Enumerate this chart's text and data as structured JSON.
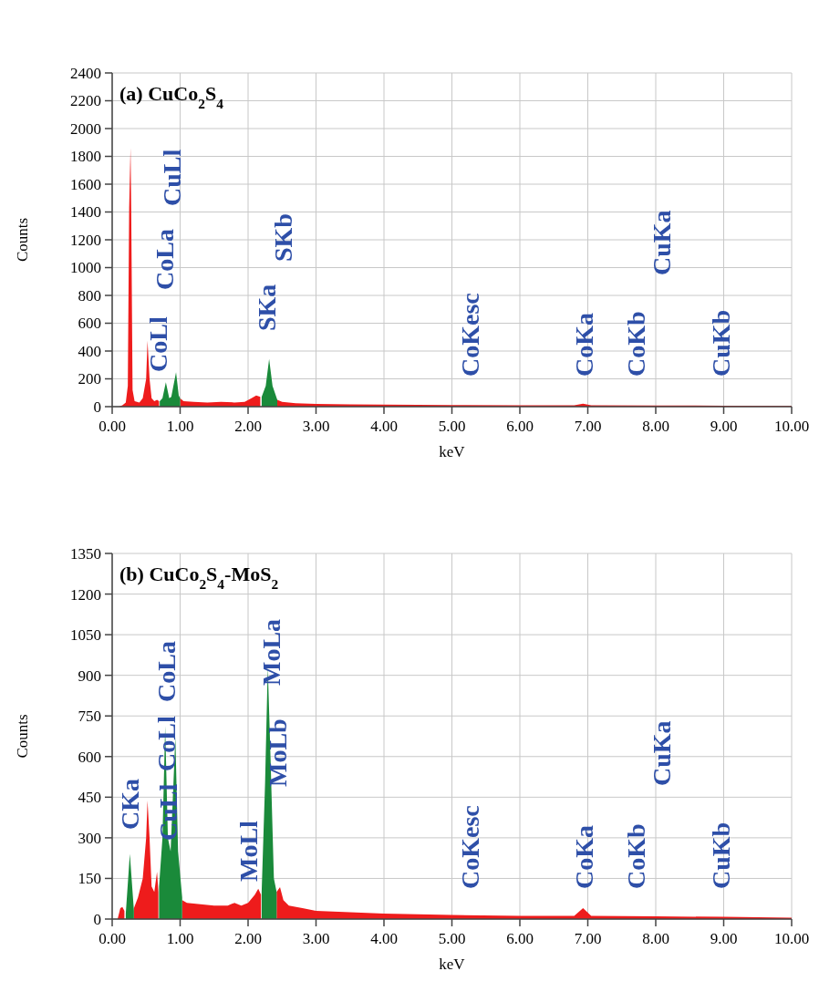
{
  "chart_data": [
    {
      "type": "area",
      "title": "(a) CuCo$_{2}$S$_{4}$",
      "xlabel": "keV",
      "ylabel": "Counts",
      "xlim": [
        0,
        10
      ],
      "xticks": [
        {
          "value": 0,
          "label": "0.00"
        },
        {
          "value": 1,
          "label": "1.00"
        },
        {
          "value": 2,
          "label": "2.00"
        },
        {
          "value": 3,
          "label": "3.00"
        },
        {
          "value": 4,
          "label": "4.00"
        },
        {
          "value": 5,
          "label": "5.00"
        },
        {
          "value": 6,
          "label": "6.00"
        },
        {
          "value": 7,
          "label": "7.00"
        },
        {
          "value": 8,
          "label": "8.00"
        },
        {
          "value": 9,
          "label": "9.00"
        },
        {
          "value": 10,
          "label": "10.00"
        }
      ],
      "ylim": [
        0,
        2400
      ],
      "yticks": [
        0,
        200,
        400,
        600,
        800,
        1000,
        1200,
        1400,
        1600,
        1800,
        2000,
        2200,
        2400
      ],
      "grid": true,
      "series": [
        {
          "color": "#ee1c1c",
          "x": [
            0.1,
            0.15,
            0.2,
            0.23,
            0.25,
            0.27,
            0.28,
            0.3,
            0.33,
            0.4,
            0.45,
            0.5,
            0.52,
            0.55,
            0.58,
            0.62,
            0.66,
            0.69,
            0.7,
            1.0,
            1.05,
            1.2,
            1.4,
            1.6,
            1.8,
            1.95,
            2.05,
            2.12,
            2.18,
            2.2,
            2.43,
            2.5,
            2.7,
            3.0,
            3.5,
            4.0,
            5.0,
            6.0,
            6.8,
            6.93,
            7.05,
            8.0,
            9.0,
            10.0
          ],
          "values": [
            0,
            10,
            30,
            150,
            1430,
            1860,
            1430,
            120,
            40,
            30,
            60,
            200,
            473,
            200,
            60,
            40,
            50,
            40,
            null,
            60,
            40,
            35,
            30,
            35,
            30,
            35,
            60,
            80,
            70,
            null,
            50,
            35,
            25,
            20,
            16,
            14,
            12,
            10,
            10,
            22,
            10,
            8,
            7,
            5
          ]
        },
        {
          "color": "#1a8a3a",
          "x": [
            0.7,
            0.74,
            0.79,
            0.84,
            0.87,
            0.94,
            0.98,
            1.0,
            1.5,
            2.2,
            2.26,
            2.31,
            2.36,
            2.43
          ],
          "values": [
            40,
            60,
            176,
            60,
            70,
            247,
            80,
            60,
            null,
            70,
            150,
            343,
            150,
            50
          ]
        }
      ],
      "annotations": [
        "CoLl",
        "CoLa",
        "CuLl",
        "SKa",
        "SKb",
        "CoKesc",
        "CoKa",
        "CoKb",
        "CuKa",
        "CuKb"
      ]
    },
    {
      "type": "area",
      "title": "(b) CuCo$_{2}$S$_{4}$-MoS$_{2}$",
      "xlabel": "keV",
      "ylabel": "Counts",
      "xlim": [
        0,
        10
      ],
      "xticks": [
        {
          "value": 0,
          "label": "0.00"
        },
        {
          "value": 1,
          "label": "1.00"
        },
        {
          "value": 2,
          "label": "2.00"
        },
        {
          "value": 3,
          "label": "3.00"
        },
        {
          "value": 4,
          "label": "4.00"
        },
        {
          "value": 5,
          "label": "5.00"
        },
        {
          "value": 6,
          "label": "6.00"
        },
        {
          "value": 7,
          "label": "7.00"
        },
        {
          "value": 8,
          "label": "8.00"
        },
        {
          "value": 9,
          "label": "9.00"
        },
        {
          "value": 10,
          "label": "10.00"
        }
      ],
      "ylim": [
        0,
        1350
      ],
      "yticks": [
        0,
        150,
        300,
        450,
        600,
        750,
        900,
        1050,
        1200,
        1350
      ],
      "grid": true,
      "series": [
        {
          "color": "#ee1c1c",
          "x": [
            0.08,
            0.12,
            0.15,
            0.18,
            0.2,
            0.32,
            0.38,
            0.45,
            0.5,
            0.52,
            0.55,
            0.58,
            0.62,
            0.66,
            0.68,
            0.69,
            1.03,
            1.1,
            1.3,
            1.5,
            1.7,
            1.8,
            1.9,
            2.0,
            2.1,
            2.15,
            2.19,
            2.2,
            2.42,
            2.47,
            2.52,
            2.6,
            2.8,
            3.0,
            3.5,
            4.0,
            5.0,
            6.0,
            6.8,
            6.93,
            7.05,
            8.0,
            9.0,
            10.0
          ],
          "values": [
            0,
            40,
            45,
            30,
            null,
            40,
            80,
            150,
            300,
            438,
            300,
            120,
            100,
            174,
            100,
            null,
            70,
            60,
            55,
            50,
            50,
            60,
            50,
            60,
            90,
            112,
            90,
            null,
            100,
            118,
            70,
            50,
            40,
            30,
            25,
            20,
            15,
            12,
            12,
            40,
            12,
            10,
            8,
            5
          ]
        },
        {
          "color": "#1a8a3a",
          "x": [
            0.2,
            0.26,
            0.32,
            0.5,
            0.69,
            0.74,
            0.78,
            0.82,
            0.86,
            0.93,
            0.97,
            1.03,
            1.5,
            2.2,
            2.25,
            2.29,
            2.33,
            2.38,
            2.42
          ],
          "values": [
            20,
            241,
            30,
            null,
            120,
            300,
            713,
            300,
            250,
            673,
            250,
            80,
            null,
            100,
            500,
            931,
            600,
            150,
            100
          ]
        }
      ],
      "annotations": [
        "CKa",
        "CuLl",
        "CoLl",
        "CoLa",
        "MoLl",
        "MoLb",
        "MoLa",
        "CoKesc",
        "CoKa",
        "CoKb",
        "CuKa",
        "CuKb"
      ]
    }
  ]
}
